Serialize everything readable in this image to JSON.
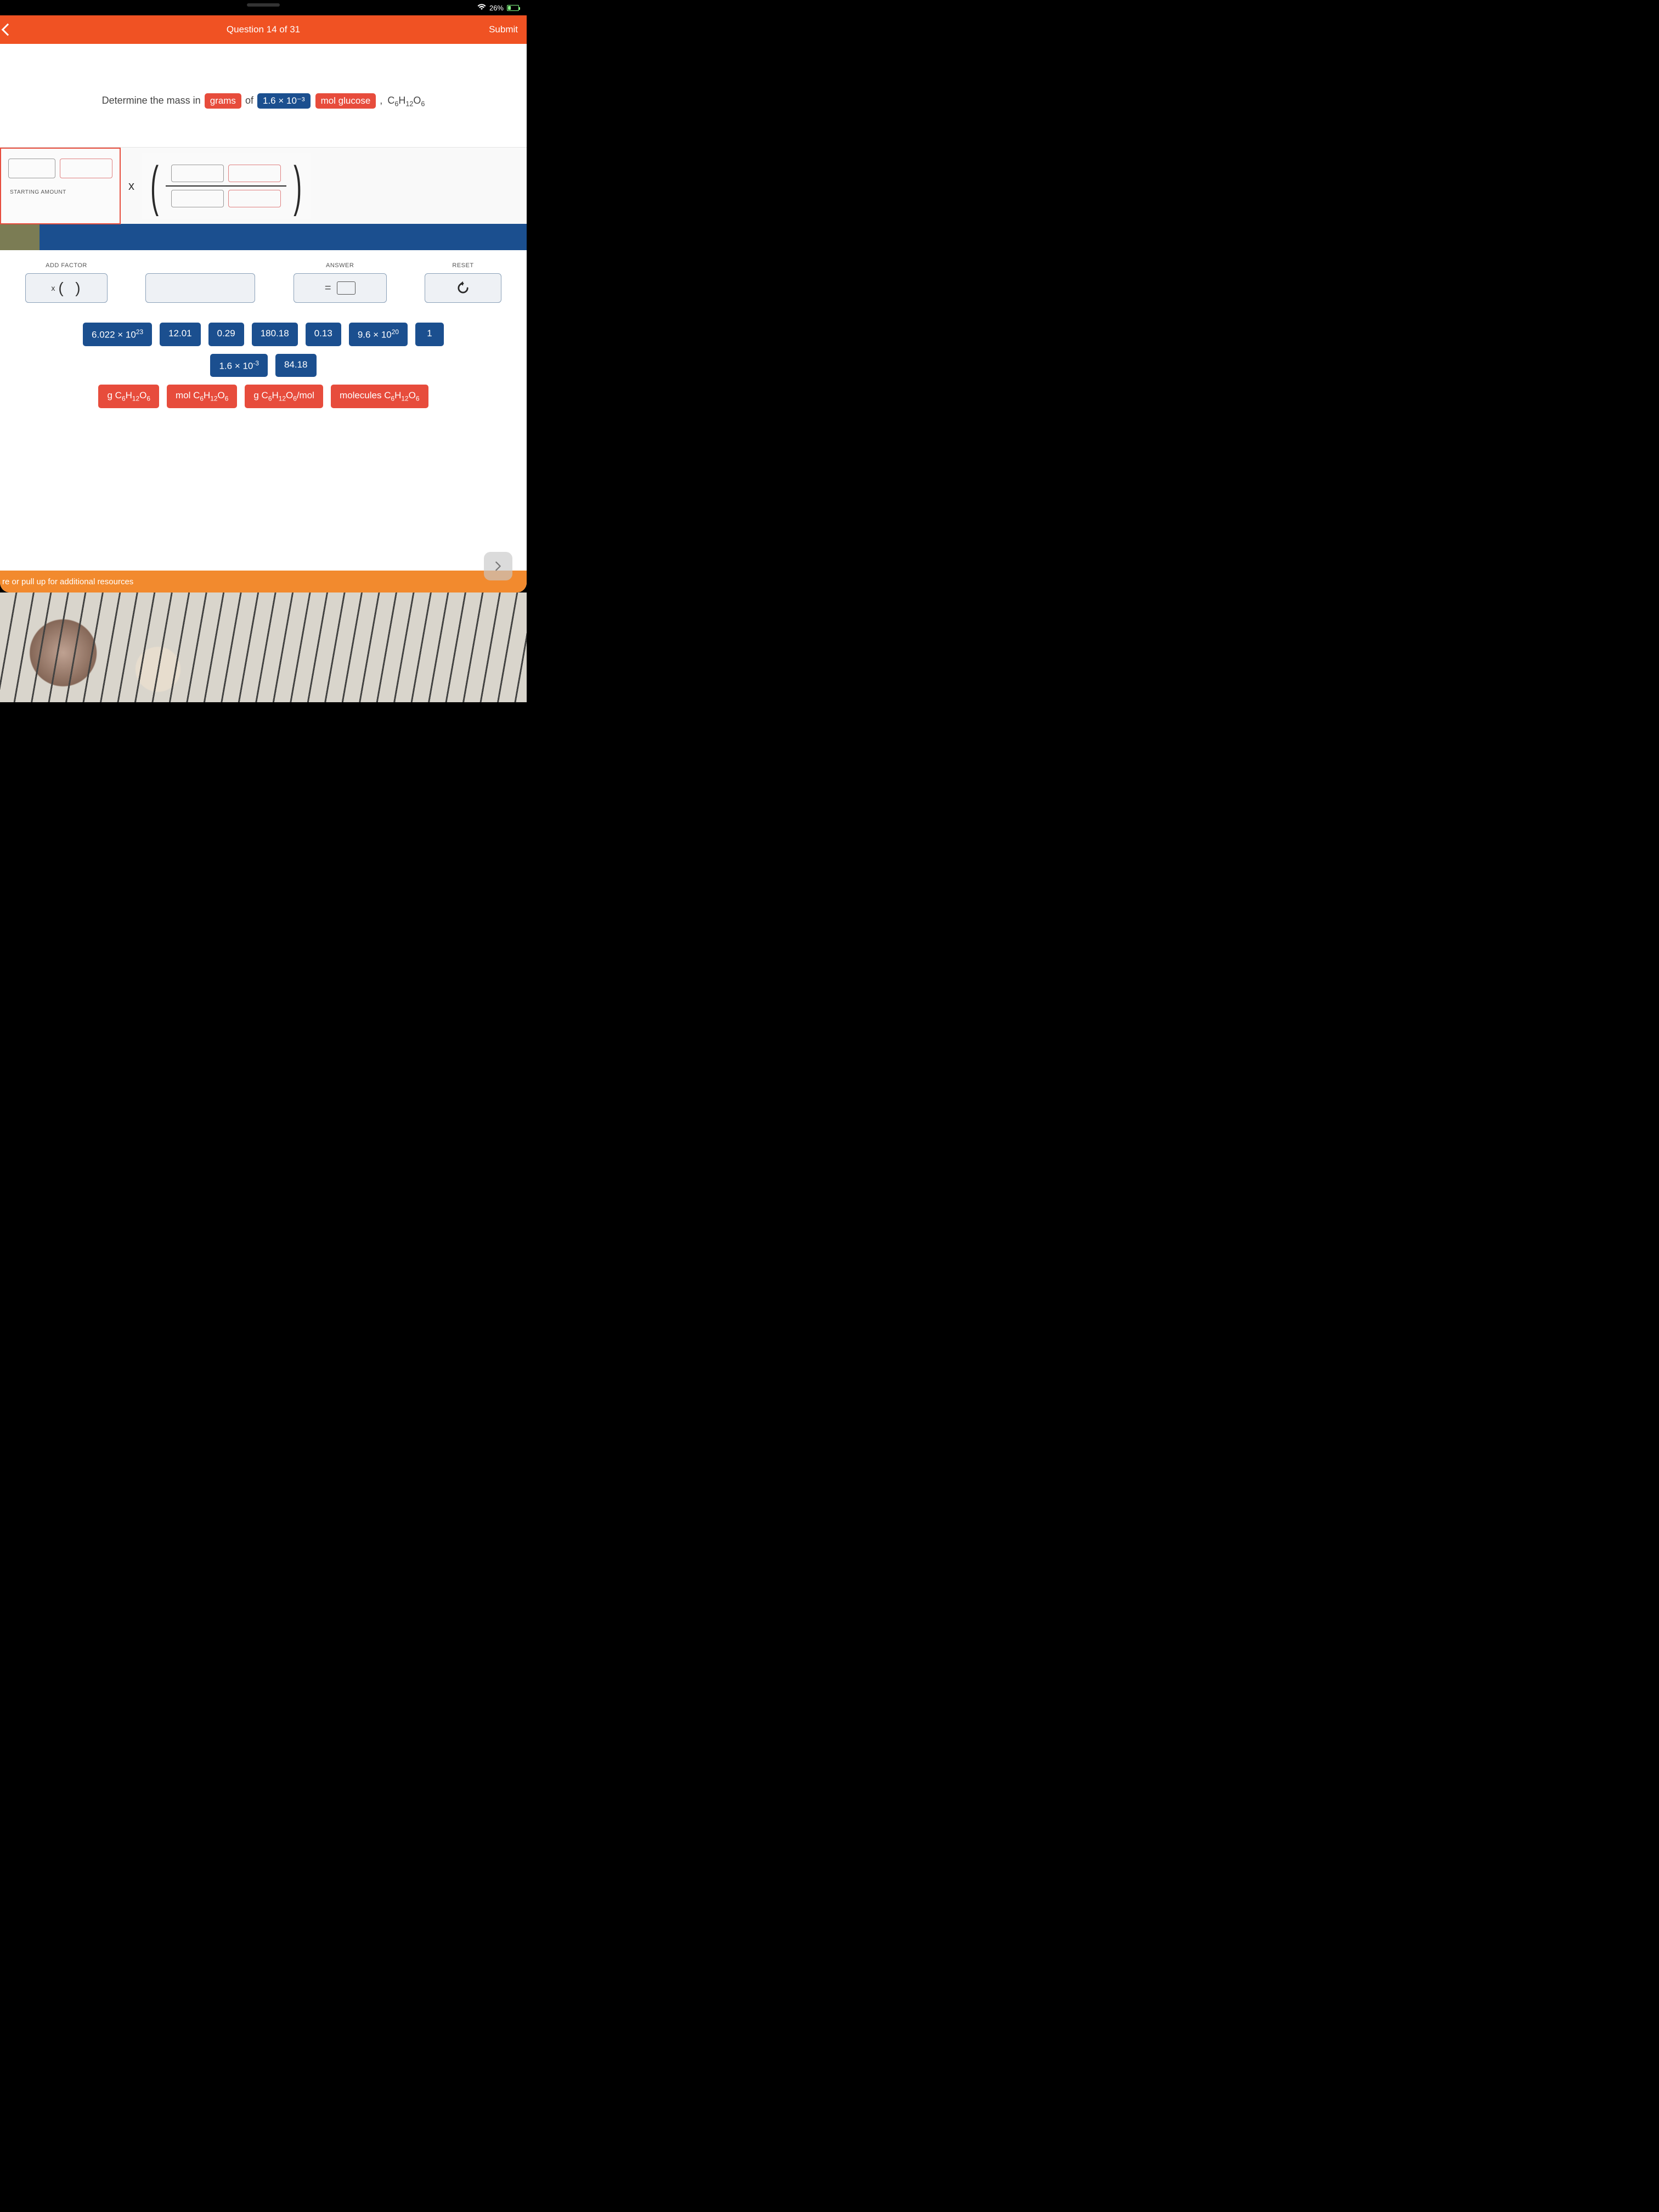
{
  "status": {
    "wifi": "wifi-icon",
    "battery_pct": "26%",
    "charging": true
  },
  "header": {
    "title": "Question 14 of 31",
    "submit": "Submit"
  },
  "question": {
    "prefix": "Determine the mass in",
    "unit_pill": "grams",
    "of": "of",
    "qty_pill": "1.6 × 10⁻³",
    "substance_pill": "mol glucose",
    "comma": ",",
    "formula_html": "C₆H₁₂O₆"
  },
  "work": {
    "starting_label": "STARTING AMOUNT",
    "times": "x"
  },
  "controls": {
    "add_factor_label": "ADD FACTOR",
    "add_factor_text": "(  )",
    "answer_label": "ANSWER",
    "reset_label": "RESET"
  },
  "tiles_blue_row1": [
    "6.022 × 10²³",
    "12.01",
    "0.29",
    "180.18",
    "0.13",
    "9.6 × 10²⁰",
    "1"
  ],
  "tiles_blue_row2": [
    "1.6 × 10⁻³",
    "84.18"
  ],
  "tiles_red": [
    "g C₆H₁₂O₆",
    "mol C₆H₁₂O₆",
    "g C₆H₁₂O₆/mol",
    "molecules C₆H₁₂O₆"
  ],
  "footer": {
    "hint": "re or pull up for additional resources"
  },
  "colors": {
    "header": "#f05223",
    "blue": "#1b4f8f",
    "red": "#e74c3c",
    "footer": "#f28a2e",
    "olive": "#7b7c54"
  }
}
